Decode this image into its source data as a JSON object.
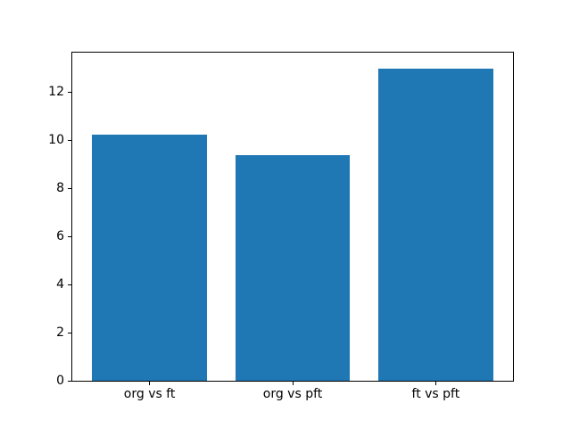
{
  "figure": {
    "background": "#ffffff"
  },
  "chart_data": {
    "type": "bar",
    "title": "",
    "xlabel": "",
    "ylabel": "",
    "categories": [
      "org vs ft",
      "org vs pft",
      "ft vs pft"
    ],
    "values": [
      10.25,
      9.37,
      13.0
    ],
    "ylim": [
      0,
      13.65
    ],
    "yticks": [
      0,
      2,
      4,
      6,
      8,
      10,
      12
    ],
    "bar_color": "#1f77b4",
    "axis_color": "#000000",
    "bar_width_fraction": 0.8,
    "grid": false,
    "legend": false
  }
}
